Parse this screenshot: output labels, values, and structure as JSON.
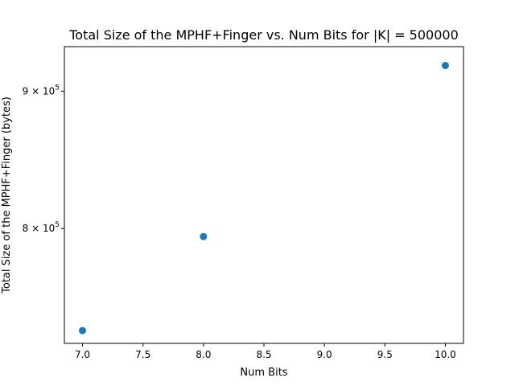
{
  "chart_data": {
    "type": "scatter",
    "title": "Total Size of the MPHF+Finger vs. Num Bits for |K| = 500000",
    "xlabel": "Num Bits",
    "ylabel": "Total Size of the MPHF+Finger (bytes)",
    "xlim": [
      6.85,
      10.15
    ],
    "ylim": [
      725000,
      935000
    ],
    "yscale": "log",
    "x_ticks": [
      "7.0",
      "7.5",
      "8.0",
      "8.5",
      "9.0",
      "9.5",
      "10.0"
    ],
    "x_tick_values": [
      7.0,
      7.5,
      8.0,
      8.5,
      9.0,
      9.5,
      10.0
    ],
    "y_ticks": [
      {
        "value": 800000,
        "base": "8 × 10",
        "exp": "5"
      },
      {
        "value": 900000,
        "base": "9 × 10",
        "exp": "5"
      }
    ],
    "x": [
      7,
      8,
      10
    ],
    "y": [
      733000,
      794500,
      920000
    ],
    "marker_color": "#1f77b4",
    "grid": false
  }
}
